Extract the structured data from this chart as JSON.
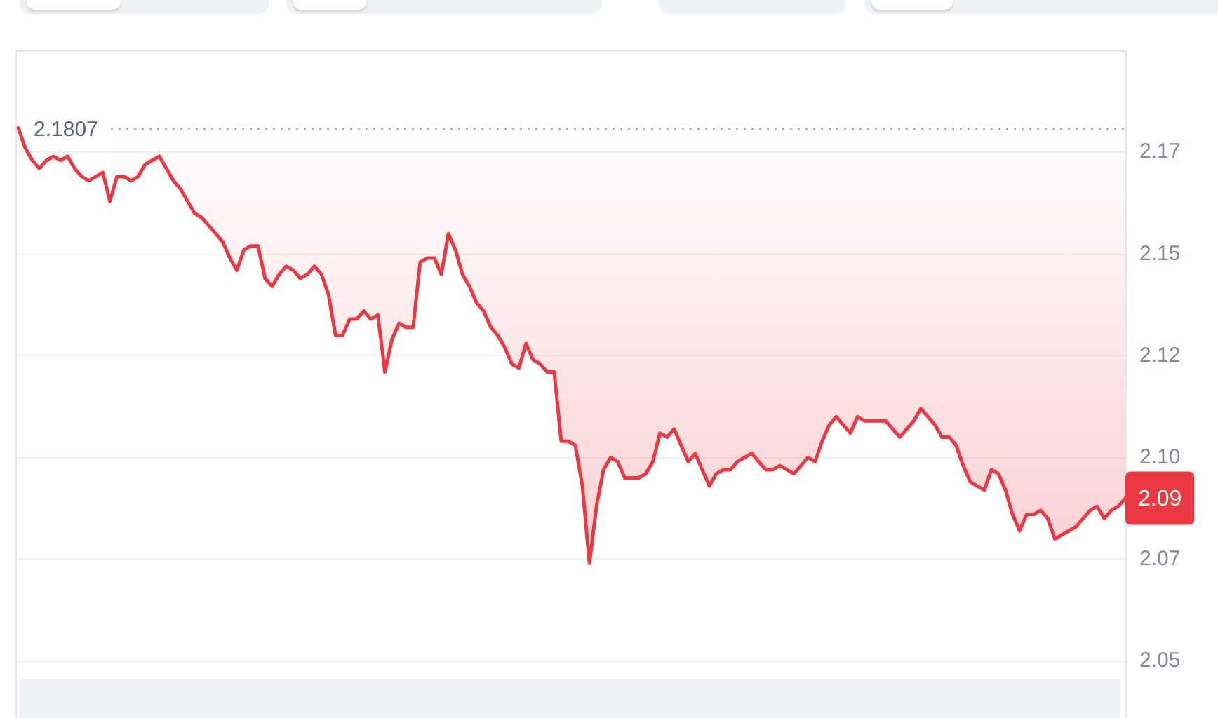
{
  "chart_data": {
    "type": "line",
    "categories": [
      null,
      null,
      null,
      null,
      null,
      null,
      null,
      null,
      null,
      null,
      null,
      null,
      null,
      null,
      null,
      null,
      null,
      null,
      null,
      null,
      null,
      null,
      null,
      null,
      null,
      null,
      null,
      null,
      null,
      null,
      null,
      null,
      null,
      null,
      null,
      null,
      null,
      null,
      null,
      null,
      null,
      null,
      null,
      null,
      null,
      null,
      null,
      null,
      null,
      null,
      null,
      null,
      null,
      null,
      null,
      null,
      null,
      null,
      null,
      null,
      null,
      null,
      null,
      null,
      null,
      null,
      null,
      null,
      null,
      null,
      null,
      null,
      null,
      null,
      null,
      null,
      null,
      null,
      null,
      null,
      null,
      null,
      null,
      null,
      null,
      null,
      null,
      null,
      null,
      null,
      null,
      null,
      null,
      null,
      null,
      null,
      null,
      null,
      null,
      null,
      null,
      null,
      null,
      null,
      null,
      null,
      null,
      null,
      null,
      null,
      null,
      null,
      null,
      null,
      null,
      null,
      null,
      null,
      null,
      null,
      null,
      null,
      null,
      null,
      null,
      null,
      null,
      null,
      null,
      null,
      null,
      null,
      null,
      null,
      null,
      null,
      null,
      null,
      null,
      null,
      null,
      null,
      null,
      null,
      null,
      null,
      null,
      null,
      null,
      null,
      null,
      null,
      null,
      null,
      null,
      null,
      null,
      null
    ],
    "series": [
      {
        "color": "#ea3943",
        "values": [
          2.181,
          2.176,
          2.173,
          2.171,
          2.173,
          2.174,
          2.173,
          2.174,
          2.171,
          2.169,
          2.168,
          2.169,
          2.17,
          2.163,
          2.169,
          2.169,
          2.168,
          2.169,
          2.172,
          2.173,
          2.174,
          2.171,
          2.168,
          2.166,
          2.163,
          2.16,
          2.159,
          2.157,
          2.155,
          2.153,
          2.149,
          2.146,
          2.151,
          2.152,
          2.152,
          2.144,
          2.142,
          2.145,
          2.147,
          2.146,
          2.144,
          2.145,
          2.147,
          2.145,
          2.14,
          2.13,
          2.13,
          2.134,
          2.134,
          2.136,
          2.134,
          2.135,
          2.121,
          2.129,
          2.133,
          2.132,
          2.132,
          2.148,
          2.149,
          2.149,
          2.145,
          2.155,
          2.151,
          2.145,
          2.142,
          2.138,
          2.136,
          2.132,
          2.13,
          2.127,
          2.123,
          2.122,
          2.128,
          2.124,
          2.123,
          2.121,
          2.121,
          2.104,
          2.104,
          2.103,
          2.093,
          2.074,
          2.088,
          2.097,
          2.1,
          2.099,
          2.095,
          2.095,
          2.095,
          2.096,
          2.099,
          2.106,
          2.105,
          2.107,
          2.103,
          2.099,
          2.101,
          2.097,
          2.093,
          2.096,
          2.097,
          2.097,
          2.099,
          2.1,
          2.101,
          2.099,
          2.097,
          2.097,
          2.098,
          2.097,
          2.096,
          2.098,
          2.1,
          2.099,
          2.104,
          2.108,
          2.11,
          2.108,
          2.106,
          2.11,
          2.109,
          2.109,
          2.109,
          2.109,
          2.107,
          2.105,
          2.107,
          2.109,
          2.112,
          2.11,
          2.108,
          2.105,
          2.105,
          2.103,
          2.098,
          2.094,
          2.093,
          2.092,
          2.097,
          2.096,
          2.092,
          2.086,
          2.082,
          2.086,
          2.086,
          2.087,
          2.085,
          2.08,
          2.081,
          2.082,
          2.083,
          2.085,
          2.087,
          2.088,
          2.085,
          2.087,
          2.088,
          2.09
        ],
        "lower": [
          2.181,
          2.176,
          null,
          null,
          null,
          null,
          null,
          null,
          null,
          null,
          null,
          null,
          null,
          2.163,
          2.169,
          2.169,
          2.168,
          2.169,
          2.172,
          2.173,
          2.174,
          2.171,
          2.168,
          2.166,
          2.163,
          2.16,
          2.159,
          2.157,
          2.155,
          2.153,
          2.149,
          2.146,
          2.151,
          2.152,
          2.152,
          2.144,
          2.142,
          2.145,
          2.147,
          2.146,
          2.144,
          2.145,
          2.147,
          2.145,
          2.14,
          2.13,
          2.13,
          2.134,
          2.134,
          2.136,
          2.134,
          2.135,
          2.121,
          2.129,
          2.133,
          2.132,
          2.132,
          2.148,
          2.149,
          2.149,
          2.145,
          2.155,
          2.151,
          2.145,
          2.142,
          2.138,
          2.136,
          2.132,
          2.13,
          2.127,
          2.123,
          2.122,
          2.128,
          2.124,
          2.123,
          2.121,
          2.121,
          2.104,
          2.104,
          2.103,
          2.093,
          2.074,
          2.088,
          2.097,
          2.1,
          2.099,
          2.095,
          2.095,
          2.095,
          2.096,
          2.099,
          2.106,
          2.105,
          2.107,
          2.103,
          2.099,
          2.101,
          2.097,
          2.093,
          2.096,
          2.097,
          2.097,
          2.099,
          2.1,
          2.101,
          2.099,
          2.097,
          2.097,
          2.098,
          2.097,
          2.096,
          2.098,
          2.1,
          2.099,
          2.104,
          2.108,
          2.11,
          2.108,
          2.106,
          2.11,
          2.109,
          2.109,
          2.109,
          2.109,
          2.107,
          2.105,
          2.107,
          2.109,
          2.112,
          2.11,
          2.108,
          2.105,
          2.105,
          2.103,
          2.098,
          2.094,
          2.093,
          2.092,
          2.097,
          2.096,
          2.092,
          2.086,
          2.082,
          2.086,
          2.086,
          2.087,
          2.085,
          2.08,
          2.081,
          2.082,
          2.083,
          2.085,
          2.087,
          2.088,
          2.085,
          2.087,
          2.088,
          2.09
        ],
        "upper": [
          2.1807,
          2.1807,
          null,
          null,
          null,
          null,
          null,
          null,
          null,
          null,
          null,
          null,
          null,
          2.1807,
          2.1807,
          2.1807,
          2.1807,
          2.1807,
          2.1807,
          2.1807,
          2.1807,
          2.1807,
          2.1807,
          2.1807,
          2.1807,
          2.1807,
          2.1807,
          2.1807,
          2.1807,
          2.1807,
          2.1807,
          2.1807,
          2.1807,
          2.1807,
          2.1807,
          2.1807,
          2.1807,
          2.1807,
          2.1807,
          2.1807,
          2.1807,
          2.1807,
          2.1807,
          2.1807,
          2.1807,
          2.1807,
          2.1807,
          2.1807,
          2.1807,
          2.1807,
          2.1807,
          2.1807,
          2.1807,
          2.1807,
          2.1807,
          2.1807,
          2.1807,
          2.1807,
          2.1807,
          2.1807,
          2.1807,
          2.1807,
          2.1807,
          2.1807,
          2.1807,
          2.1807,
          2.1807,
          2.1807,
          2.1807,
          2.1807,
          2.1807,
          2.1807,
          2.1807,
          2.1807,
          2.1807,
          2.1807,
          2.1807,
          2.1807,
          2.1807,
          2.1807,
          2.1807,
          2.1807,
          2.1807,
          2.1807,
          2.1807,
          2.1807,
          2.1807,
          2.1807,
          2.1807,
          2.1807,
          2.1807,
          2.1807,
          2.1807,
          2.1807,
          2.1807,
          2.1807,
          2.1807,
          2.1807,
          2.1807,
          2.1807,
          2.1807,
          2.1807,
          2.1807,
          2.1807,
          2.1807,
          2.1807,
          2.1807,
          2.1807,
          2.1807,
          2.1807,
          2.1807,
          2.1807,
          2.1807,
          2.1807,
          2.1807,
          2.1807,
          2.1807,
          2.1807,
          2.1807,
          2.1807,
          2.1807,
          2.1807,
          2.1807,
          2.1807,
          2.1807,
          2.1807,
          2.1807,
          2.1807,
          2.1807,
          2.1807,
          2.1807,
          2.1807,
          2.1807,
          2.1807,
          2.1807,
          2.1807,
          2.1807,
          2.1807,
          2.1807,
          2.1807,
          2.1807,
          2.1807,
          2.1807,
          2.1807,
          2.1807,
          2.1807,
          2.1807,
          2.1807,
          2.1807,
          2.1807,
          2.1807,
          2.1807,
          2.1807,
          2.1807,
          2.1807,
          2.1807,
          2.1807,
          2.1807
        ]
      }
    ],
    "ylim": [
      2.036,
      2.2
    ],
    "yticks": [
      2.05,
      {
        "value": 2.075,
        "label": "2.07"
      },
      {
        "value": 2.1,
        "label": "2.10"
      },
      {
        "value": 2.125,
        "label": "2.12"
      },
      2.15,
      {
        "value": 2.175,
        "label": "2.17"
      }
    ],
    "grid": "y",
    "tick_labels": "y",
    "marker": "none",
    "ref_lines": [
      {
        "axis": "y",
        "value": 2.1807,
        "label": "2.1807",
        "color": "#a3abb8",
        "line_style": "dotted"
      }
    ],
    "annotations": [
      "2.09"
    ]
  }
}
